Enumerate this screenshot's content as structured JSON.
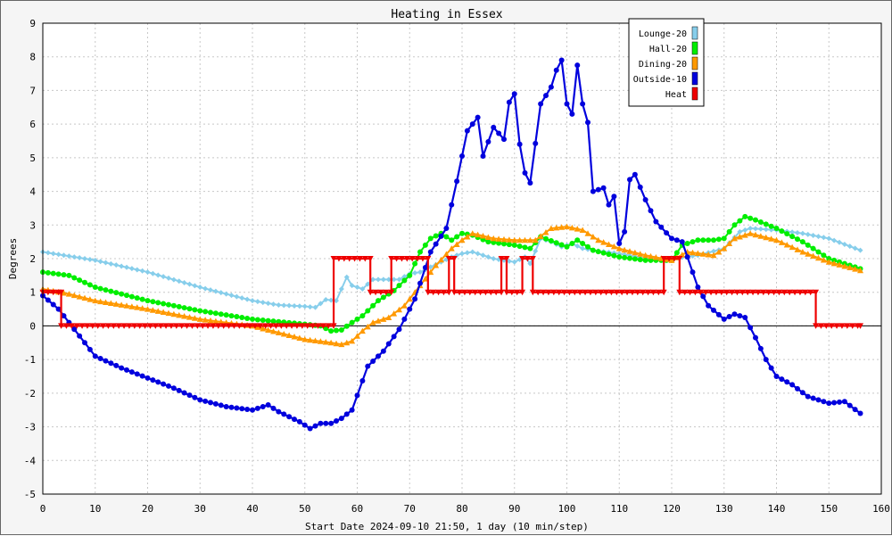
{
  "chart_data": {
    "type": "line",
    "title": "Heating in Essex",
    "xlabel": "Start Date 2024-09-10 21:50, 1 day (10 min/step)",
    "ylabel": "Degrees",
    "xlim": [
      0,
      160
    ],
    "ylim": [
      -5,
      9
    ],
    "xticks": [
      0,
      10,
      20,
      30,
      40,
      50,
      60,
      70,
      80,
      90,
      100,
      110,
      120,
      130,
      140,
      150,
      160
    ],
    "yticks": [
      -5,
      -4,
      -3,
      -2,
      -1,
      0,
      1,
      2,
      3,
      4,
      5,
      6,
      7,
      8,
      9
    ],
    "grid": true,
    "legend_position": "top-right",
    "series": [
      {
        "name": "Lounge-20",
        "color": "#87ceeb",
        "marker": "diamond",
        "x": [
          0,
          10,
          20,
          30,
          40,
          45,
          50,
          52,
          54,
          56,
          58,
          59,
          61,
          63,
          66,
          68,
          70,
          72,
          74,
          76,
          78,
          80,
          82,
          84,
          86,
          88,
          90,
          92,
          93,
          95,
          97,
          99,
          101,
          103,
          105,
          110,
          115,
          120,
          125,
          130,
          133,
          135,
          140,
          145,
          150,
          156
        ],
        "y": [
          2.2,
          1.95,
          1.6,
          1.15,
          0.75,
          0.62,
          0.58,
          0.55,
          0.78,
          0.75,
          1.45,
          1.2,
          1.1,
          1.38,
          1.38,
          1.38,
          1.55,
          1.6,
          1.75,
          1.9,
          2.05,
          2.15,
          2.2,
          2.1,
          2.0,
          1.95,
          1.9,
          2.05,
          1.85,
          2.6,
          2.5,
          2.35,
          2.45,
          2.3,
          2.25,
          2.15,
          2.0,
          2.0,
          2.1,
          2.3,
          2.8,
          2.9,
          2.85,
          2.75,
          2.6,
          2.25
        ]
      },
      {
        "name": "Hall-20",
        "color": "#00ee00",
        "marker": "circle",
        "x": [
          0,
          5,
          10,
          15,
          20,
          30,
          40,
          50,
          53,
          55,
          57,
          59,
          61,
          64,
          67,
          70,
          72,
          74,
          76,
          78,
          80,
          82,
          85,
          90,
          93,
          95,
          100,
          102,
          105,
          110,
          115,
          120,
          122,
          125,
          128,
          130,
          132,
          134,
          136,
          140,
          145,
          150,
          156
        ],
        "y": [
          1.6,
          1.5,
          1.15,
          0.95,
          0.75,
          0.45,
          0.2,
          0.05,
          0.0,
          -0.15,
          -0.12,
          0.1,
          0.3,
          0.75,
          1.05,
          1.5,
          2.2,
          2.6,
          2.75,
          2.55,
          2.75,
          2.7,
          2.5,
          2.4,
          2.3,
          2.65,
          2.35,
          2.55,
          2.25,
          2.05,
          1.95,
          1.95,
          2.4,
          2.55,
          2.55,
          2.6,
          3.0,
          3.25,
          3.15,
          2.9,
          2.5,
          2.0,
          1.7
        ]
      },
      {
        "name": "Dining-20",
        "color": "#ff9900",
        "marker": "triangle",
        "x": [
          0,
          5,
          10,
          20,
          30,
          40,
          50,
          55,
          57,
          59,
          61,
          63,
          66,
          69,
          72,
          75,
          78,
          80,
          82,
          86,
          90,
          94,
          97,
          100,
          103,
          106,
          110,
          115,
          120,
          123,
          128,
          130,
          132,
          135,
          140,
          145,
          150,
          156
        ],
        "y": [
          1.1,
          0.95,
          0.75,
          0.5,
          0.2,
          0.0,
          -0.4,
          -0.5,
          -0.55,
          -0.45,
          -0.15,
          0.1,
          0.25,
          0.6,
          1.2,
          1.8,
          2.3,
          2.55,
          2.75,
          2.6,
          2.55,
          2.55,
          2.9,
          2.95,
          2.85,
          2.55,
          2.3,
          2.1,
          1.95,
          2.2,
          2.1,
          2.3,
          2.6,
          2.75,
          2.55,
          2.2,
          1.9,
          1.65
        ]
      },
      {
        "name": "Outside-10",
        "color": "#0000dd",
        "marker": "circle",
        "x": [
          0,
          3,
          6,
          10,
          15,
          20,
          25,
          30,
          35,
          40,
          43,
          45,
          49,
          51,
          53,
          55,
          57,
          59,
          62,
          65,
          68,
          71,
          74,
          77,
          79,
          81,
          83,
          84,
          86,
          88,
          89,
          90,
          91,
          92,
          93,
          95,
          97,
          98,
          99,
          100,
          101,
          102,
          103,
          104,
          105,
          107,
          108,
          109,
          110,
          111,
          112,
          113,
          115,
          117,
          120,
          122,
          125,
          127,
          130,
          132,
          134,
          136,
          138,
          140,
          143,
          146,
          150,
          153,
          156
        ],
        "y": [
          0.9,
          0.5,
          -0.1,
          -0.9,
          -1.25,
          -1.55,
          -1.85,
          -2.2,
          -2.4,
          -2.5,
          -2.35,
          -2.55,
          -2.85,
          -3.05,
          -2.9,
          -2.9,
          -2.75,
          -2.5,
          -1.2,
          -0.75,
          -0.1,
          0.8,
          2.2,
          2.9,
          4.3,
          5.8,
          6.2,
          5.05,
          5.9,
          5.55,
          6.65,
          6.9,
          5.4,
          4.55,
          4.25,
          6.6,
          7.1,
          7.6,
          7.9,
          6.6,
          6.3,
          7.75,
          6.6,
          6.05,
          4.0,
          4.1,
          3.6,
          3.85,
          2.45,
          2.8,
          4.35,
          4.5,
          3.75,
          3.1,
          2.6,
          2.5,
          1.15,
          0.6,
          0.2,
          0.35,
          0.25,
          -0.35,
          -1.0,
          -1.5,
          -1.75,
          -2.1,
          -2.3,
          -2.25,
          -2.6
        ]
      },
      {
        "name": "Heat",
        "color": "#ee0000",
        "marker": "triangle-down",
        "x": [
          0,
          3.5,
          3.5,
          55.5,
          55.5,
          62.5,
          62.5,
          66.5,
          66.5,
          73.5,
          73.5,
          77.5,
          77.5,
          78.5,
          78.5,
          87.5,
          87.5,
          88.5,
          88.5,
          91.5,
          91.5,
          93.5,
          93.5,
          118.5,
          118.5,
          121.5,
          121.5,
          147.5,
          147.5,
          156
        ],
        "y": [
          1,
          1,
          0,
          0,
          2,
          2,
          1,
          1,
          2,
          2,
          1,
          1,
          2,
          2,
          1,
          1,
          2,
          2,
          1,
          1,
          2,
          2,
          1,
          1,
          2,
          2,
          1,
          1,
          0,
          0
        ]
      }
    ]
  }
}
